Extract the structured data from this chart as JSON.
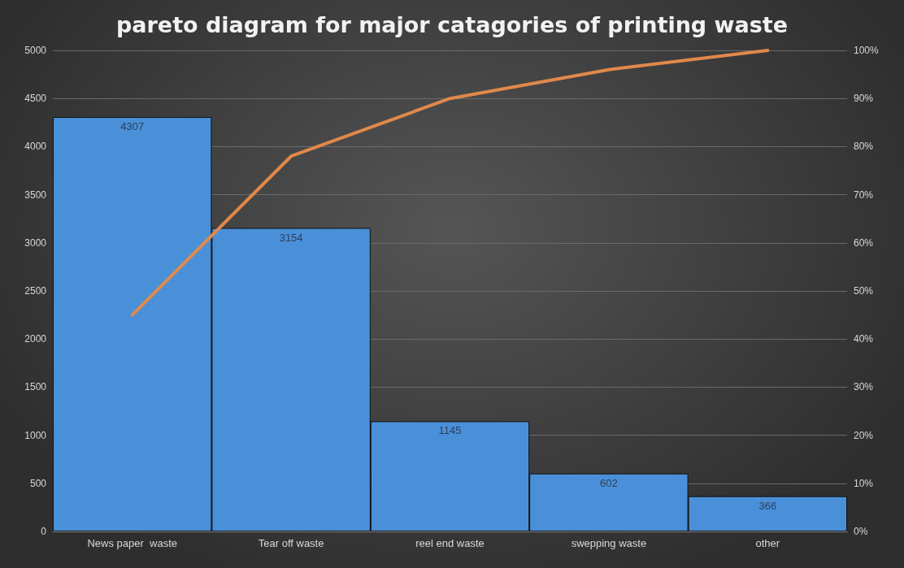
{
  "chart_data": {
    "type": "bar",
    "title": "pareto diagram for major catagories of printing waste",
    "categories": [
      "News paper  waste",
      "Tear off waste",
      "reel end waste",
      "swepping waste",
      "other"
    ],
    "series": [
      {
        "color": "#4a90d9",
        "values": [
          4307,
          3154,
          1145,
          602,
          366
        ],
        "value_labels": [
          "4307",
          "3154",
          "1145",
          "602",
          "366"
        ]
      },
      {
        "type": "line",
        "axis": "y2",
        "color": "#e0894a",
        "values": [
          45,
          78,
          90,
          96,
          100
        ],
        "marker": "none",
        "line_style": "solid"
      }
    ],
    "ylim": [
      0,
      5000
    ],
    "yticks": [
      0,
      500,
      1000,
      1500,
      2000,
      2500,
      3000,
      3500,
      4000,
      4500,
      5000
    ],
    "y2lim": [
      0,
      100
    ],
    "y2ticks": [
      {
        "value": 0,
        "label": "0%"
      },
      {
        "value": 10,
        "label": "10%"
      },
      {
        "value": 20,
        "label": "20%"
      },
      {
        "value": 30,
        "label": "30%"
      },
      {
        "value": 40,
        "label": "40%"
      },
      {
        "value": 50,
        "label": "50%"
      },
      {
        "value": 60,
        "label": "60%"
      },
      {
        "value": 70,
        "label": "70%"
      },
      {
        "value": 80,
        "label": "80%"
      },
      {
        "value": 90,
        "label": "90%"
      },
      {
        "value": 100,
        "label": "100%"
      }
    ],
    "grid": "y"
  }
}
